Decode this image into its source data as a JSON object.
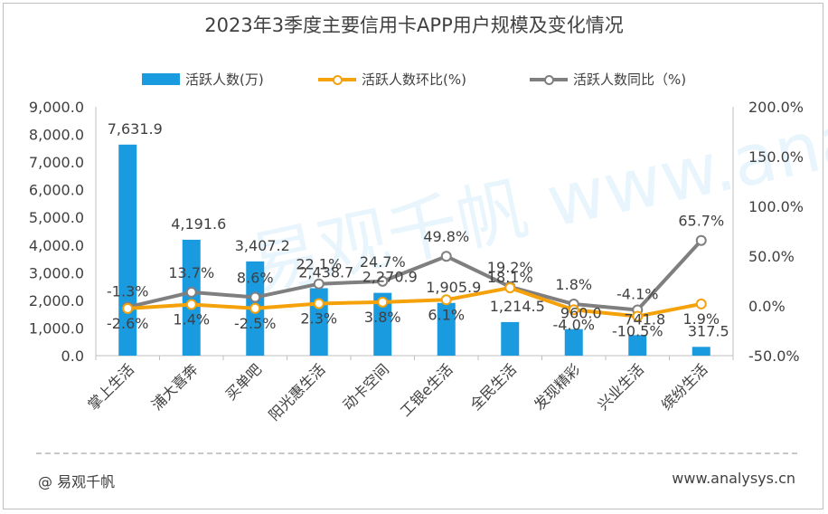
{
  "title": "2023年3季度主要信用卡APP用户规模及变化情况",
  "legend": {
    "bar": "活跃人数(万)",
    "mom": "活跃人数环比(%)",
    "yoy": "活跃人数同比（%)"
  },
  "footer": {
    "brand": "@ 易观千帆",
    "url": "www.analysys.cn"
  },
  "watermark": "易观千帆 www.analysys.cn",
  "colors": {
    "bar": "#1a9be0",
    "mom": "#f5a10a",
    "yoy": "#7f7f7f"
  },
  "chart_data": {
    "type": "bar",
    "categories": [
      "掌上生活",
      "浦大喜奔",
      "买单吧",
      "阳光惠生活",
      "动卡空间",
      "工银e生活",
      "全民生活",
      "发现精彩",
      "兴业生活",
      "缤纷生活"
    ],
    "series": [
      {
        "name": "活跃人数(万)",
        "type": "bar",
        "axis": "left",
        "values": [
          7631.9,
          4191.6,
          3407.2,
          2438.7,
          2270.9,
          1905.9,
          1214.5,
          960.0,
          741.8,
          317.5
        ],
        "labels": [
          "7,631.9",
          "4,191.6",
          "3,407.2",
          "2,438.7",
          "2,270.9",
          "1,905.9",
          "1,214.5",
          "960.0",
          "741.8",
          "317.5"
        ]
      },
      {
        "name": "活跃人数环比(%)",
        "type": "line",
        "axis": "right",
        "values": [
          -2.6,
          1.4,
          -2.5,
          2.3,
          3.8,
          6.1,
          18.1,
          -4.0,
          -10.5,
          1.9
        ],
        "labels": [
          "-2.6%",
          "1.4%",
          "-2.5%",
          "2.3%",
          "3.8%",
          "6.1%",
          "18.1%",
          "-4.0%",
          "-10.5%",
          "1.9%"
        ]
      },
      {
        "name": "活跃人数同比（%)",
        "type": "line",
        "axis": "right",
        "values": [
          -1.3,
          13.7,
          8.6,
          22.1,
          24.7,
          49.8,
          19.2,
          1.8,
          -4.1,
          65.7
        ],
        "labels": [
          "-1.3%",
          "13.7%",
          "8.6%",
          "22.1%",
          "24.7%",
          "49.8%",
          "19.2%",
          "1.8%",
          "-4.1%",
          "65.7%"
        ]
      }
    ],
    "ylim_left": [
      0,
      9000
    ],
    "yticks_left": [
      "0.0",
      "1,000.0",
      "2,000.0",
      "3,000.0",
      "4,000.0",
      "5,000.0",
      "6,000.0",
      "7,000.0",
      "8,000.0",
      "9,000.0"
    ],
    "ylim_right": [
      -50,
      200
    ],
    "yticks_right": [
      "-50.0%",
      "0.0%",
      "50.0%",
      "100.0%",
      "150.0%",
      "200.0%"
    ],
    "grid": false,
    "legend_position": "top"
  }
}
